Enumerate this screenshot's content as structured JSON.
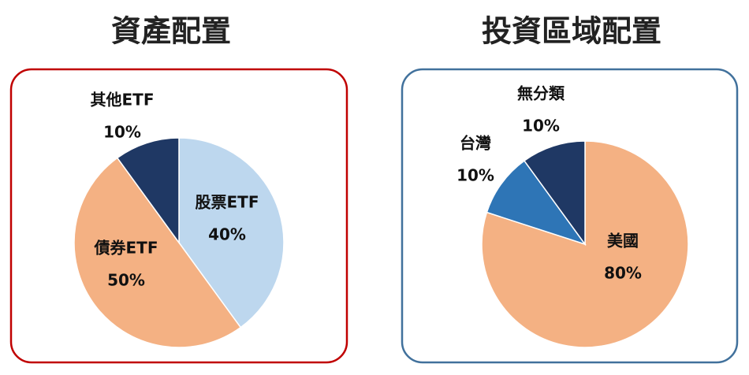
{
  "chart_data": [
    {
      "type": "pie",
      "title": "資產配置",
      "categories": [
        "股票ETF",
        "債券ETF",
        "其他ETF"
      ],
      "values": [
        40,
        50,
        10
      ],
      "value_labels": [
        "40%",
        "50%",
        "10%"
      ],
      "colors": [
        "#bdd7ee",
        "#f4b183",
        "#1f3864"
      ]
    },
    {
      "type": "pie",
      "title": "投資區域配置",
      "categories": [
        "美國",
        "台灣",
        "無分類"
      ],
      "values": [
        80,
        10,
        10
      ],
      "value_labels": [
        "80%",
        "10%",
        "10%"
      ],
      "colors": [
        "#f4b183",
        "#2e75b6",
        "#1f3864"
      ]
    }
  ]
}
